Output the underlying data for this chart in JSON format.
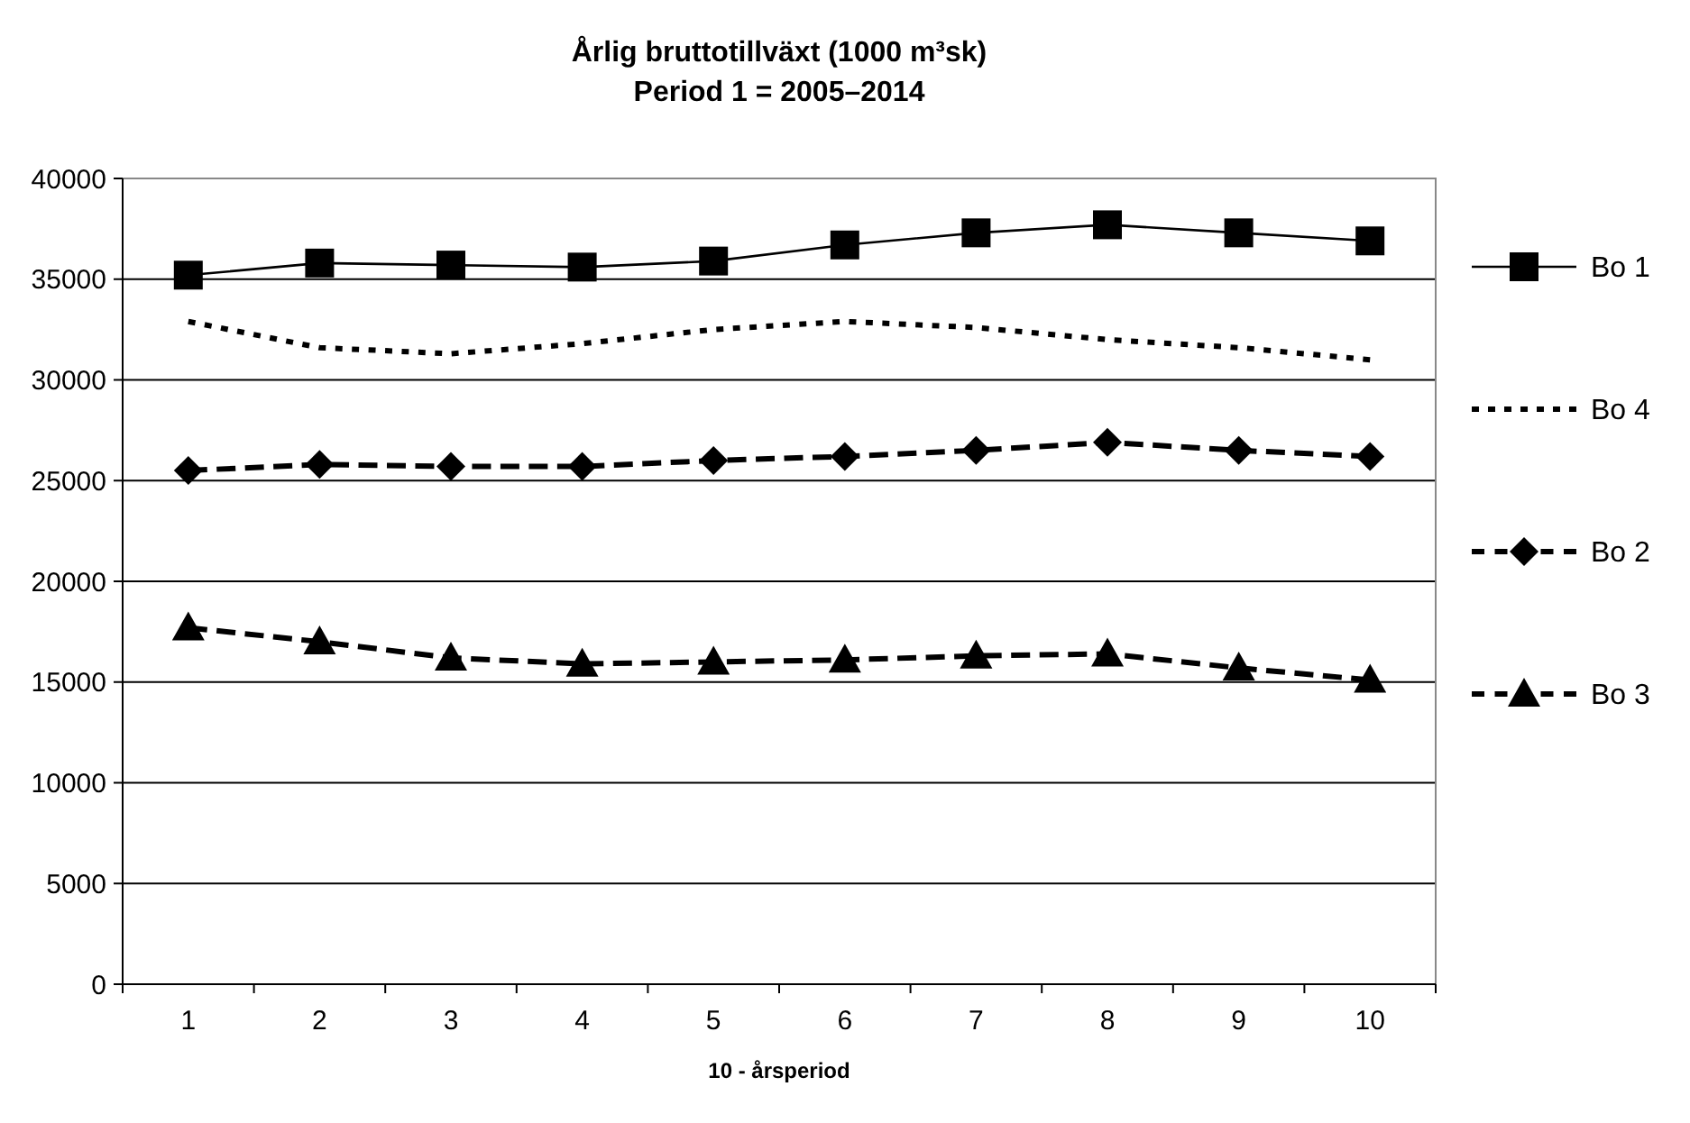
{
  "chart_data": {
    "type": "line",
    "title": "Årlig bruttotillväxt (1000 m³sk)",
    "subtitle": "Period 1 = 2005–2014",
    "xlabel": "10 - årsperiod",
    "categories": [
      "1",
      "2",
      "3",
      "4",
      "5",
      "6",
      "7",
      "8",
      "9",
      "10"
    ],
    "ylim": [
      0,
      40000
    ],
    "yticks": [
      0,
      5000,
      10000,
      15000,
      20000,
      25000,
      30000,
      35000,
      40000
    ],
    "grid": "y",
    "legend": "right",
    "series": [
      {
        "name": "Bo 1",
        "color": "#000000",
        "marker": "square",
        "line_style": "solid",
        "values": [
          35200,
          35800,
          35700,
          35600,
          35900,
          36700,
          37300,
          37700,
          37300,
          36900
        ]
      },
      {
        "name": "Bo 4",
        "color": "#000000",
        "marker": "none",
        "line_style": "dotted",
        "values": [
          32900,
          31600,
          31300,
          31800,
          32500,
          32900,
          32600,
          32000,
          31600,
          31000
        ]
      },
      {
        "name": "Bo 2",
        "color": "#000000",
        "marker": "diamond",
        "line_style": "dashed",
        "values": [
          25500,
          25800,
          25700,
          25700,
          26000,
          26200,
          26500,
          26900,
          26500,
          26200
        ]
      },
      {
        "name": "Bo 3",
        "color": "#000000",
        "marker": "triangle",
        "line_style": "dashed",
        "values": [
          17700,
          17000,
          16200,
          15900,
          16000,
          16100,
          16300,
          16400,
          15700,
          15100
        ]
      }
    ]
  }
}
